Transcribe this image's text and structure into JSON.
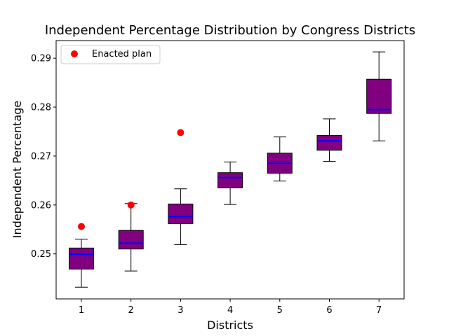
{
  "chart_data": {
    "type": "box",
    "title": "Independent Percentage Distribution by Congress Districts",
    "xlabel": "Districts",
    "ylabel": "Independent Percentage",
    "categories": [
      "1",
      "2",
      "3",
      "4",
      "5",
      "6",
      "7"
    ],
    "ylim": [
      0.2408,
      0.2936
    ],
    "yticks": [
      "0.25",
      "0.26",
      "0.27",
      "0.28",
      "0.29"
    ],
    "grid": false,
    "legend_position": "top-left",
    "box_color": "#800080",
    "median_color": "#0000ff",
    "point_color": "#ff0000",
    "boxes": [
      {
        "district": "1",
        "whisker_low": 0.2432,
        "q1": 0.2469,
        "median": 0.2499,
        "q3": 0.2512,
        "whisker_high": 0.253
      },
      {
        "district": "2",
        "whisker_low": 0.2465,
        "q1": 0.251,
        "median": 0.2522,
        "q3": 0.2548,
        "whisker_high": 0.2603
      },
      {
        "district": "3",
        "whisker_low": 0.2519,
        "q1": 0.2562,
        "median": 0.2576,
        "q3": 0.2602,
        "whisker_high": 0.2633
      },
      {
        "district": "4",
        "whisker_low": 0.2601,
        "q1": 0.2635,
        "median": 0.2656,
        "q3": 0.2666,
        "whisker_high": 0.2688
      },
      {
        "district": "5",
        "whisker_low": 0.2649,
        "q1": 0.2665,
        "median": 0.2685,
        "q3": 0.2706,
        "whisker_high": 0.2739
      },
      {
        "district": "6",
        "whisker_low": 0.2689,
        "q1": 0.2712,
        "median": 0.2731,
        "q3": 0.2742,
        "whisker_high": 0.2776
      },
      {
        "district": "7",
        "whisker_low": 0.2731,
        "q1": 0.2787,
        "median": 0.2795,
        "q3": 0.2857,
        "whisker_high": 0.2913
      }
    ],
    "series": [
      {
        "name": "Enacted plan",
        "type": "scatter",
        "x": [
          "1",
          "2",
          "3"
        ],
        "values": [
          0.2556,
          0.26,
          0.2748
        ]
      }
    ]
  }
}
